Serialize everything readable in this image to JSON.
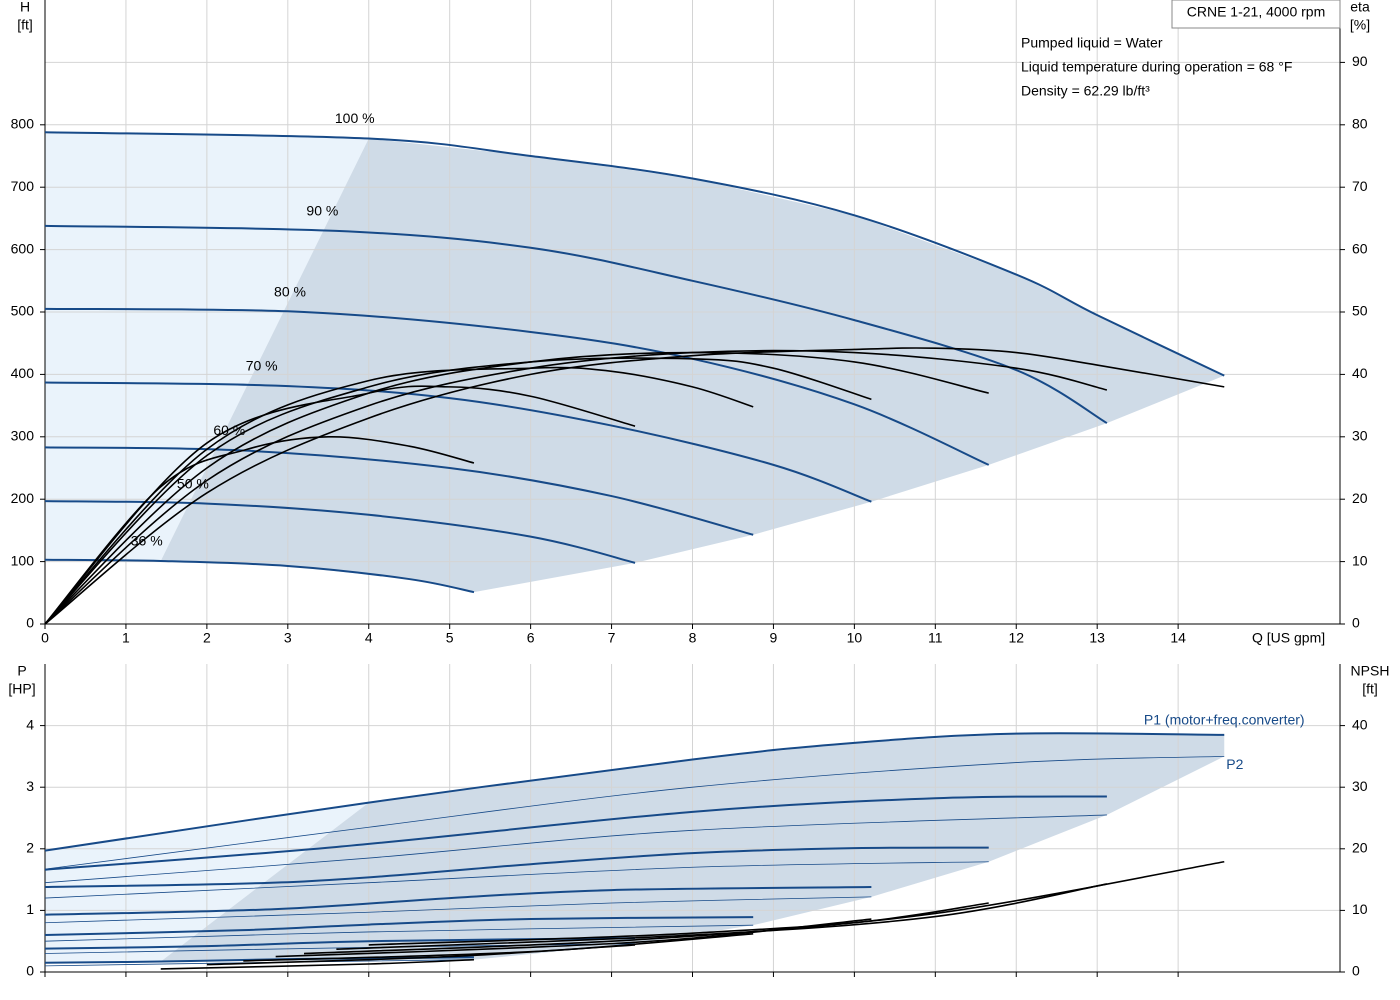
{
  "header": {
    "title": "CRNE 1-21, 4000 rpm",
    "info": [
      "Pumped liquid = Water",
      "Liquid temperature during operation = 68 °F",
      "Density = 62.29 lb/ft³"
    ]
  },
  "chart_data": [
    {
      "type": "line",
      "x_label": "Q [US gpm]",
      "y_label": [
        "H",
        "[ft]"
      ],
      "y2_label": [
        "eta",
        "[%]"
      ],
      "xlim": [
        0,
        16
      ],
      "xticks": [
        0,
        1,
        2,
        3,
        4,
        5,
        6,
        7,
        8,
        9,
        10,
        11,
        12,
        13,
        14
      ],
      "ylim": [
        0,
        1000
      ],
      "yticks": [
        0,
        100,
        200,
        300,
        400,
        500,
        600,
        700,
        800
      ],
      "y2lim": [
        0,
        100
      ],
      "y2ticks": [
        0,
        10,
        20,
        30,
        40,
        50,
        60,
        70,
        80,
        90
      ],
      "grid": true,
      "series": [
        {
          "name": "100 %",
          "color": "#174a88",
          "width": 2,
          "x": [
            0,
            4,
            6,
            8,
            10,
            12,
            13,
            14.57
          ],
          "values": [
            788,
            778,
            750,
            714,
            655,
            560,
            495,
            398
          ]
        },
        {
          "name": "90 %",
          "color": "#174a88",
          "width": 2,
          "x": [
            0,
            3.6,
            6,
            8,
            10,
            12,
            13.12
          ],
          "values": [
            638,
            630,
            603,
            550,
            487,
            407,
            322
          ]
        },
        {
          "name": "80 %",
          "color": "#174a88",
          "width": 2,
          "x": [
            0,
            3.2,
            6,
            8,
            10,
            11.66
          ],
          "values": [
            505,
            500,
            468,
            425,
            352,
            255
          ]
        },
        {
          "name": "70 %",
          "color": "#174a88",
          "width": 2,
          "x": [
            0,
            2.85,
            5,
            7,
            9,
            10.21
          ],
          "values": [
            387,
            382,
            362,
            318,
            255,
            196
          ]
        },
        {
          "name": "60 %",
          "color": "#174a88",
          "width": 2,
          "x": [
            0,
            2.45,
            5,
            7,
            8.75
          ],
          "values": [
            283,
            278,
            250,
            205,
            143
          ]
        },
        {
          "name": "50 %",
          "color": "#174a88",
          "width": 2,
          "x": [
            0,
            2,
            4,
            6,
            7.29
          ],
          "values": [
            197,
            193,
            175,
            140,
            98
          ]
        },
        {
          "name": "36 %",
          "color": "#174a88",
          "width": 2,
          "x": [
            0,
            1.43,
            3,
            4.5,
            5.3
          ],
          "values": [
            103,
            101,
            93,
            72,
            51
          ]
        },
        {
          "color": "#000000",
          "width": 1.6,
          "axis": "y2",
          "x": [
            0,
            2,
            4,
            6,
            8,
            10,
            11,
            12,
            13,
            14.57
          ],
          "values": [
            0,
            21,
            33,
            40,
            43,
            44,
            44.2,
            43.5,
            41.5,
            38
          ]
        },
        {
          "color": "#000000",
          "width": 1.6,
          "axis": "y2",
          "x": [
            0,
            2,
            4,
            6,
            8,
            10,
            12,
            13.12
          ],
          "values": [
            0,
            23,
            35,
            41,
            43.5,
            43.5,
            41,
            37.5
          ]
        },
        {
          "color": "#000000",
          "width": 1.6,
          "axis": "y2",
          "x": [
            0,
            2,
            4,
            6,
            8,
            10,
            11.66
          ],
          "values": [
            0,
            25,
            37,
            42,
            43.5,
            42,
            37
          ]
        },
        {
          "color": "#000000",
          "width": 1.6,
          "axis": "y2",
          "x": [
            0,
            2,
            4,
            6,
            8,
            9,
            10.21
          ],
          "values": [
            0,
            27,
            38,
            42,
            42.5,
            41,
            36
          ]
        },
        {
          "color": "#000000",
          "width": 1.6,
          "axis": "y2",
          "x": [
            0,
            2,
            4,
            6,
            7,
            8,
            8.75
          ],
          "values": [
            0,
            28,
            39,
            41,
            40.5,
            38,
            34.8
          ]
        },
        {
          "color": "#000000",
          "width": 1.6,
          "axis": "y2",
          "x": [
            0,
            2,
            4,
            5,
            6,
            7.29
          ],
          "values": [
            0,
            29,
            37,
            38,
            36.5,
            31.7
          ]
        },
        {
          "color": "#000000",
          "width": 1.6,
          "axis": "y2",
          "x": [
            0,
            1.43,
            2.5,
            3.5,
            4.5,
            5.3
          ],
          "values": [
            0,
            22,
            28,
            30,
            28.5,
            25.8
          ]
        }
      ]
    },
    {
      "type": "line",
      "y_label": [
        "P",
        "[HP]"
      ],
      "y2_label": [
        "NPSH",
        "[ft]"
      ],
      "xlim": [
        0,
        16
      ],
      "ylim": [
        0,
        5
      ],
      "yticks": [
        0,
        1,
        2,
        3,
        4
      ],
      "y2lim": [
        0,
        50
      ],
      "y2ticks": [
        0,
        10,
        20,
        30,
        40
      ],
      "grid": true,
      "series": [
        {
          "name": "P1 (motor+freq.converter)",
          "color": "#174a88",
          "width": 2,
          "x": [
            0,
            4,
            8,
            10,
            12,
            14.57
          ],
          "values": [
            1.97,
            2.75,
            3.45,
            3.72,
            3.87,
            3.85
          ]
        },
        {
          "color": "#174a88",
          "width": 2,
          "x": [
            0,
            3.6,
            8,
            11,
            13.12
          ],
          "values": [
            1.66,
            2.03,
            2.6,
            2.82,
            2.85
          ]
        },
        {
          "color": "#174a88",
          "width": 2,
          "x": [
            0,
            3.2,
            6,
            8,
            10,
            11.66
          ],
          "values": [
            1.38,
            1.47,
            1.75,
            1.93,
            2.01,
            2.02
          ]
        },
        {
          "color": "#174a88",
          "width": 2,
          "x": [
            0,
            2.85,
            5,
            7,
            10.21
          ],
          "values": [
            0.93,
            1.02,
            1.2,
            1.33,
            1.38
          ]
        },
        {
          "color": "#174a88",
          "width": 2,
          "x": [
            0,
            2.45,
            4,
            6,
            8.75
          ],
          "values": [
            0.6,
            0.68,
            0.77,
            0.86,
            0.89
          ]
        },
        {
          "color": "#174a88",
          "width": 2,
          "x": [
            0,
            2,
            4,
            7.29
          ],
          "values": [
            0.38,
            0.42,
            0.5,
            0.55
          ]
        },
        {
          "color": "#174a88",
          "width": 2,
          "x": [
            0,
            1.43,
            3,
            5.3
          ],
          "values": [
            0.15,
            0.17,
            0.21,
            0.24
          ]
        },
        {
          "name": "P2",
          "color": "#174a88",
          "width": 0.8,
          "x": [
            0,
            4,
            8,
            12,
            14.57
          ],
          "values": [
            1.67,
            2.35,
            3.0,
            3.4,
            3.5
          ]
        },
        {
          "color": "#174a88",
          "width": 0.8,
          "x": [
            0,
            4,
            8,
            13.12
          ],
          "values": [
            1.45,
            1.85,
            2.3,
            2.55
          ]
        },
        {
          "color": "#174a88",
          "width": 0.8,
          "x": [
            0,
            4,
            8,
            11.66
          ],
          "values": [
            1.2,
            1.45,
            1.7,
            1.79
          ]
        },
        {
          "color": "#174a88",
          "width": 0.8,
          "x": [
            0,
            4,
            7,
            10.21
          ],
          "values": [
            0.8,
            0.97,
            1.12,
            1.22
          ]
        },
        {
          "color": "#174a88",
          "width": 0.8,
          "x": [
            0,
            4,
            8.75
          ],
          "values": [
            0.5,
            0.65,
            0.76
          ]
        },
        {
          "color": "#174a88",
          "width": 0.8,
          "x": [
            0,
            4,
            7.29
          ],
          "values": [
            0.3,
            0.4,
            0.46
          ]
        },
        {
          "color": "#174a88",
          "width": 0.8,
          "x": [
            0,
            3,
            5.3
          ],
          "values": [
            0.1,
            0.16,
            0.2
          ]
        },
        {
          "color": "#000000",
          "width": 1.6,
          "axis": "y2",
          "x": [
            4,
            8,
            11,
            14.57
          ],
          "values": [
            4.4,
            6.3,
            9.5,
            17.9
          ]
        },
        {
          "color": "#000000",
          "width": 1.6,
          "axis": "y2",
          "x": [
            3.6,
            8,
            11,
            13.12
          ],
          "values": [
            3.7,
            6,
            9,
            14.3
          ]
        },
        {
          "color": "#000000",
          "width": 1.6,
          "axis": "y2",
          "x": [
            3.2,
            7,
            10,
            11.66
          ],
          "values": [
            3,
            5,
            8,
            11.2
          ]
        },
        {
          "color": "#000000",
          "width": 1.6,
          "axis": "y2",
          "x": [
            2.85,
            6,
            8,
            10.21
          ],
          "values": [
            2.5,
            4,
            5.5,
            8.6
          ]
        },
        {
          "color": "#000000",
          "width": 1.6,
          "axis": "y2",
          "x": [
            2.45,
            6,
            8.75
          ],
          "values": [
            1.8,
            3.3,
            6.2
          ]
        },
        {
          "color": "#000000",
          "width": 1.6,
          "axis": "y2",
          "x": [
            2,
            5,
            7.29
          ],
          "values": [
            1.2,
            2.5,
            4.4
          ]
        },
        {
          "color": "#000000",
          "width": 1.6,
          "axis": "y2",
          "x": [
            1.43,
            4,
            5.3
          ],
          "values": [
            0.5,
            1.3,
            2.0
          ]
        }
      ]
    }
  ]
}
